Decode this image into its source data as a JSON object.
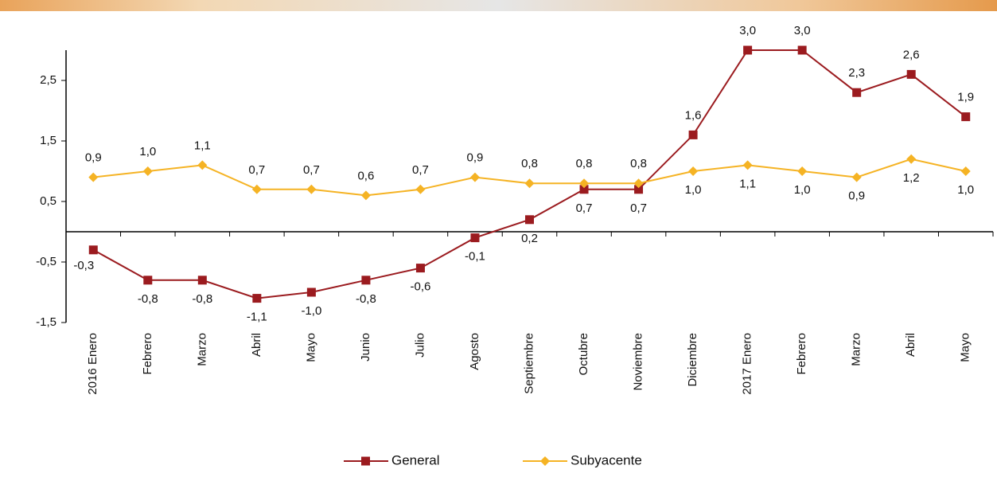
{
  "chart_data": {
    "type": "line",
    "categories": [
      "2016 Enero",
      "Febrero",
      "Marzo",
      "Abril",
      "Mayo",
      "Junio",
      "Julio",
      "Agosto",
      "Septiembre",
      "Octubre",
      "Noviembre",
      "Diciembre",
      "2017 Enero",
      "Febrero",
      "Marzo",
      "Abril",
      "Mayo"
    ],
    "series": [
      {
        "name": "General",
        "color": "#9b1b1f",
        "marker": "square",
        "values": [
          -0.3,
          -0.8,
          -0.8,
          -1.1,
          -1.0,
          -0.8,
          -0.6,
          -0.1,
          0.2,
          0.7,
          0.7,
          1.6,
          3.0,
          3.0,
          2.3,
          2.6,
          1.9
        ],
        "value_labels": [
          "-0,3",
          "-0,8",
          "-0,8",
          "-1,1",
          "-1,0",
          "-0,8",
          "-0,6",
          "-0,1",
          "0,2",
          "0,7",
          "0,7",
          "1,6",
          "3,0",
          "3,0",
          "2,3",
          "2,6",
          "1,9"
        ]
      },
      {
        "name": "Subyacente",
        "color": "#f5b324",
        "marker": "diamond",
        "values": [
          0.9,
          1.0,
          1.1,
          0.7,
          0.7,
          0.6,
          0.7,
          0.9,
          0.8,
          0.8,
          0.8,
          1.0,
          1.1,
          1.0,
          0.9,
          1.2,
          1.0
        ],
        "value_labels": [
          "0,9",
          "1,0",
          "1,1",
          "0,7",
          "0,7",
          "0,6",
          "0,7",
          "0,9",
          "0,8",
          "0,8",
          "0,8",
          "1,0",
          "1,1",
          "1,0",
          "0,9",
          "1,2",
          "1,0"
        ]
      }
    ],
    "ylim": [
      -1.5,
      3.0
    ],
    "yticks": [
      {
        "value": -1.5,
        "label": "-1,5"
      },
      {
        "value": -0.5,
        "label": "-0,5"
      },
      {
        "value": 0.5,
        "label": "0,5"
      },
      {
        "value": 1.5,
        "label": "1,5"
      },
      {
        "value": 2.5,
        "label": "2,5"
      }
    ],
    "legend": "bottom"
  }
}
